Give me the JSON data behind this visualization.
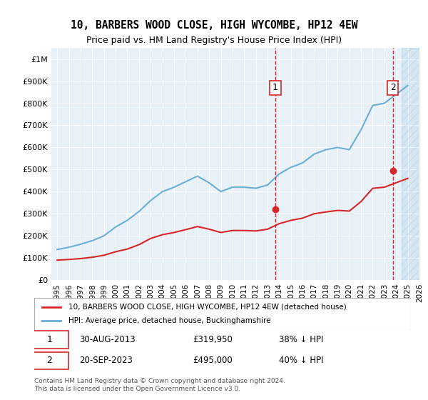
{
  "title": "10, BARBERS WOOD CLOSE, HIGH WYCOMBE, HP12 4EW",
  "subtitle": "Price paid vs. HM Land Registry's House Price Index (HPI)",
  "xlabel": "",
  "ylabel": "",
  "ylim": [
    0,
    1050000
  ],
  "xlim_start": 1995,
  "xlim_end": 2026,
  "yticks": [
    0,
    100000,
    200000,
    300000,
    400000,
    500000,
    600000,
    700000,
    800000,
    900000,
    1000000
  ],
  "ytick_labels": [
    "£0",
    "£100K",
    "£200K",
    "£300K",
    "£400K",
    "£500K",
    "£600K",
    "£700K",
    "£800K",
    "£900K",
    "£1M"
  ],
  "xticks": [
    1995,
    1996,
    1997,
    1998,
    1999,
    2000,
    2001,
    2002,
    2003,
    2004,
    2005,
    2006,
    2007,
    2008,
    2009,
    2010,
    2011,
    2012,
    2013,
    2014,
    2015,
    2016,
    2017,
    2018,
    2019,
    2020,
    2021,
    2022,
    2023,
    2024,
    2025,
    2026
  ],
  "hpi_years": [
    1995,
    1996,
    1997,
    1998,
    1999,
    2000,
    2001,
    2002,
    2003,
    2004,
    2005,
    2006,
    2007,
    2008,
    2009,
    2010,
    2011,
    2012,
    2013,
    2014,
    2015,
    2016,
    2017,
    2018,
    2019,
    2020,
    2021,
    2022,
    2023,
    2024,
    2025
  ],
  "hpi_values": [
    138000,
    148000,
    162000,
    178000,
    200000,
    240000,
    270000,
    310000,
    360000,
    400000,
    420000,
    445000,
    470000,
    440000,
    400000,
    420000,
    420000,
    415000,
    430000,
    480000,
    510000,
    530000,
    570000,
    590000,
    600000,
    590000,
    680000,
    790000,
    800000,
    840000,
    880000
  ],
  "price_years": [
    1995,
    1996,
    1997,
    1998,
    1999,
    2000,
    2001,
    2002,
    2003,
    2004,
    2005,
    2006,
    2007,
    2008,
    2009,
    2010,
    2011,
    2012,
    2013,
    2014,
    2015,
    2016,
    2017,
    2018,
    2019,
    2020,
    2021,
    2022,
    2023,
    2024,
    2025
  ],
  "price_values": [
    90000,
    93000,
    97000,
    103000,
    112000,
    128000,
    140000,
    160000,
    188000,
    205000,
    215000,
    228000,
    242000,
    230000,
    215000,
    224000,
    224000,
    222000,
    230000,
    255000,
    270000,
    280000,
    300000,
    308000,
    315000,
    312000,
    355000,
    415000,
    420000,
    440000,
    460000
  ],
  "sale1_year": 2013.667,
  "sale1_price": 319950,
  "sale2_year": 2023.722,
  "sale2_price": 495000,
  "hpi_color": "#6baed6",
  "price_color": "#d62728",
  "sale_vline_color": "#d62728",
  "bg_color": "#e8f0f8",
  "plot_bg": "#ffffff",
  "legend_label1": "10, BARBERS WOOD CLOSE, HIGH WYCOMBE, HP12 4EW (detached house)",
  "legend_label2": "HPI: Average price, detached house, Buckinghamshire",
  "note1_label": "1",
  "note1_date": "30-AUG-2013",
  "note1_price": "£319,950",
  "note1_hpi": "38% ↓ HPI",
  "note2_label": "2",
  "note2_date": "20-SEP-2023",
  "note2_price": "£495,000",
  "note2_hpi": "40% ↓ HPI",
  "footer": "Contains HM Land Registry data © Crown copyright and database right 2024.\nThis data is licensed under the Open Government Licence v3.0."
}
